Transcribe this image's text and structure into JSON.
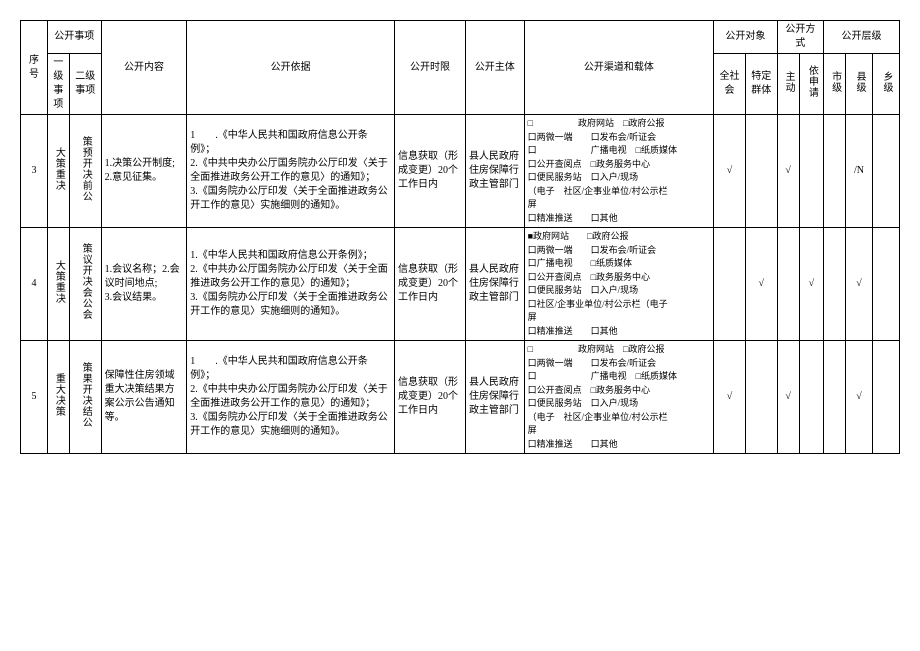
{
  "headers": {
    "seq": "序号",
    "matter": "公开事项",
    "l1": "一级事项",
    "l2": "二级事项",
    "content": "公开内容",
    "basis": "公开依据",
    "time": "公开时限",
    "body": "公开主体",
    "channel": "公开渠道和载体",
    "target": "公开对象",
    "all": "全社会",
    "spec": "特定群体",
    "method": "公开方式",
    "active": "主动",
    "apply": "依申请",
    "level": "公开层级",
    "city": "市级",
    "county": "县级",
    "town": "乡级"
  },
  "rows": [
    {
      "seq": "3",
      "l1": "大策重决",
      "l2": "策预开决前公",
      "content": "1.决策公开制度; 2.意见征集。",
      "basis": "1　　.《中华人民共和国政府信息公开条例》；\n2.《中共中央办公厅国务院办公厅印发〈关于全面推进政务公开工作的意见〉的通知》；\n3.《国务院办公厅印发〈关于全面推进政务公开工作的意见〉实施细则的通知》。",
      "time": "信息获取（形成变更）20个工作日内",
      "body": "县人民政府住房保障行政主管部门",
      "channel": "□　　　　　政府网站　□政府公报\n口两微一端　　口发布会/听证会\n口　　　　　　广播电视　□纸质媒体\n口公开查阅点　□政务服务中心\n口便民服务站　口入户/现场\n（电子　社区/企事业单位/村公示栏\n屏\n口精准推送　　口其他",
      "all": "√",
      "spec": "",
      "active": "√",
      "apply": "",
      "city": "",
      "county": "/N",
      "town": ""
    },
    {
      "seq": "4",
      "l1": "大策重决",
      "l2": "策议开决会公会",
      "content": "1.会议名称；2.会议时间地点;\n3.会议结果。",
      "basis": "1.《中华人民共和国政府信息公开条例》；\n2.《中共办公厅国务院办公厅印发〈关于全面推进政务公开工作的意见〉的通知》；\n3.《国务院办公厅印发〈关于全面推进政务公开工作的意见〉实施细则的通知》。",
      "time": "信息获取（形成变更）20个工作日内",
      "body": "县人民政府住房保障行政主管部门",
      "channel": "■政府网站　　□政府公报\n口两微一端　　口发布会/听证会\n口广播电视　　□纸质媒体\n口公开查阅点　□政务服务中心\n口便民服务站　口入户/现场\n口社区/企事业单位/村公示栏（电子\n屏\n口精准推送　　口其他",
      "all": "",
      "spec": "√",
      "active": "",
      "apply": "√",
      "city": "",
      "county": "√",
      "town": ""
    },
    {
      "seq": "5",
      "l1": "重大决策",
      "l2": "策果开决结公",
      "content": "保障性住房领域重大决策结果方案公示公告通知等。",
      "basis": "1　　.《中华人民共和国政府信息公开条例》；\n2.《中共中央办公厅国务院办公厅印发〈关于全面推进政务公开工作的意见〉的通知》；\n3.《国务院办公厅印发〈关于全面推进政务公开工作的意见〉实施细则的通知》。",
      "time": "信息获取（形成变更）20个工作日内",
      "body": "县人民政府住房保障行政主管部门",
      "channel": "□　　　　　政府网站　□政府公报\n口两微一端　　口发布会/听证会\n口　　　　　　广播电视　□纸质媒体\n口公开查阅点　□政务服务中心\n口便民服务站　口入户/现场\n（电子　社区/企事业单位/村公示栏\n屏\n口精准推送　　口其他",
      "all": "√",
      "spec": "",
      "active": "√",
      "apply": "",
      "city": "",
      "county": "√",
      "town": ""
    }
  ]
}
